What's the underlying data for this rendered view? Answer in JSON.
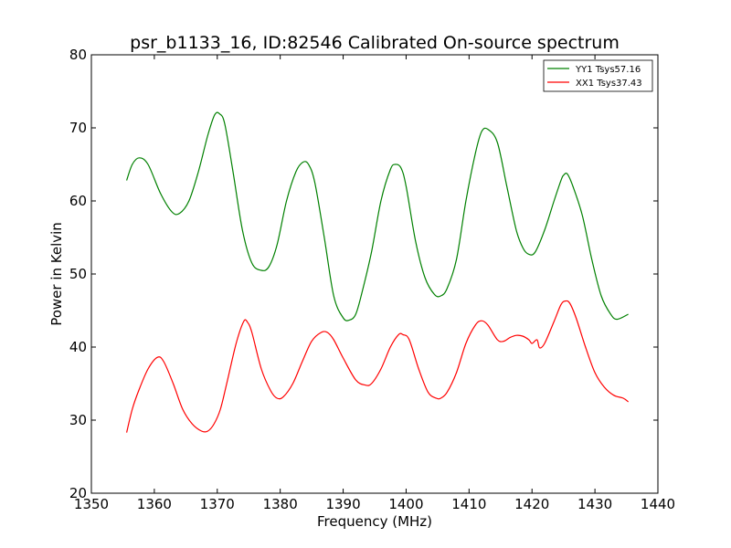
{
  "chart_data": {
    "type": "line",
    "title": "psr_b1133_16, ID:82546 Calibrated On-source spectrum",
    "xlabel": "Frequency (MHz)",
    "ylabel": "Power in Kelvin",
    "xlim": [
      1350,
      1440
    ],
    "ylim": [
      20,
      80
    ],
    "xticks": [
      "1350",
      "1360",
      "1370",
      "1380",
      "1390",
      "1400",
      "1410",
      "1420",
      "1430",
      "1440"
    ],
    "yticks": [
      "20",
      "30",
      "40",
      "50",
      "60",
      "70",
      "80"
    ],
    "grid": false,
    "legend_position": "top-right",
    "series": [
      {
        "name": "YY1 Tsys57.16",
        "color": "#008000",
        "x": [
          1355.6,
          1356.5,
          1357.6,
          1359.0,
          1361.0,
          1362.8,
          1364.0,
          1365.5,
          1367.0,
          1368.5,
          1369.6,
          1370.4,
          1371.2,
          1372.5,
          1374.0,
          1375.5,
          1377.0,
          1378.2,
          1379.5,
          1381.0,
          1382.5,
          1383.6,
          1384.5,
          1385.5,
          1387.0,
          1388.5,
          1390.0,
          1391.0,
          1392.0,
          1393.0,
          1394.5,
          1396.0,
          1397.5,
          1398.3,
          1399.2,
          1400.0,
          1401.5,
          1403.0,
          1404.5,
          1405.5,
          1406.5,
          1408.0,
          1409.5,
          1411.0,
          1412.0,
          1413.0,
          1414.5,
          1416.0,
          1417.5,
          1418.6,
          1419.5,
          1420.5,
          1422.0,
          1423.5,
          1424.6,
          1425.0,
          1425.6,
          1426.5,
          1428.0,
          1429.5,
          1431.0,
          1432.5,
          1433.5,
          1435.3
        ],
        "values": [
          62.8,
          65.0,
          65.9,
          65.0,
          61.0,
          58.5,
          58.3,
          60.0,
          64.0,
          69.0,
          71.8,
          71.9,
          70.5,
          64.0,
          56.0,
          51.5,
          50.5,
          51.0,
          54.0,
          60.0,
          64.0,
          65.3,
          65.0,
          62.5,
          55.0,
          47.0,
          44.0,
          43.7,
          44.5,
          47.5,
          53.0,
          60.0,
          64.3,
          65.0,
          64.5,
          62.0,
          54.5,
          49.5,
          47.2,
          47.0,
          48.0,
          52.0,
          60.0,
          66.5,
          69.5,
          69.8,
          68.0,
          62.0,
          56.0,
          53.5,
          52.7,
          53.0,
          56.0,
          60.0,
          62.8,
          63.5,
          63.7,
          62.0,
          58.0,
          52.0,
          47.0,
          44.5,
          43.8,
          44.5
        ]
      },
      {
        "name": "XX1 Tsys37.43",
        "color": "#ff0000",
        "x": [
          1355.6,
          1356.5,
          1357.5,
          1359.0,
          1360.5,
          1361.5,
          1363.0,
          1364.5,
          1366.0,
          1367.5,
          1368.5,
          1369.5,
          1370.5,
          1371.5,
          1373.0,
          1374.2,
          1374.8,
          1375.5,
          1377.0,
          1378.5,
          1379.5,
          1380.5,
          1382.0,
          1383.5,
          1385.0,
          1386.5,
          1387.5,
          1388.5,
          1390.0,
          1392.0,
          1393.5,
          1394.5,
          1396.0,
          1397.5,
          1398.8,
          1399.5,
          1400.5,
          1402.0,
          1403.5,
          1404.8,
          1405.5,
          1406.5,
          1408.0,
          1409.5,
          1411.0,
          1412.0,
          1413.0,
          1414.5,
          1415.5,
          1416.5,
          1417.5,
          1418.5,
          1419.5,
          1420.0,
          1420.8,
          1421.2,
          1422.0,
          1423.5,
          1424.6,
          1425.3,
          1426.0,
          1427.0,
          1428.5,
          1430.0,
          1431.5,
          1433.0,
          1434.5,
          1435.3
        ],
        "values": [
          28.3,
          31.5,
          34.0,
          37.0,
          38.6,
          38.0,
          35.0,
          31.5,
          29.5,
          28.5,
          28.5,
          29.5,
          31.5,
          35.0,
          40.5,
          43.5,
          43.4,
          42.0,
          37.0,
          34.0,
          33.0,
          33.2,
          35.0,
          38.0,
          40.8,
          42.0,
          42.0,
          41.0,
          38.5,
          35.5,
          34.8,
          35.0,
          37.0,
          40.0,
          41.7,
          41.7,
          41.0,
          37.0,
          33.8,
          33.0,
          33.0,
          33.8,
          36.5,
          40.5,
          43.0,
          43.6,
          43.0,
          41.0,
          40.8,
          41.3,
          41.6,
          41.5,
          41.0,
          40.5,
          41.0,
          39.9,
          40.5,
          43.5,
          45.8,
          46.3,
          46.0,
          44.0,
          40.0,
          36.5,
          34.5,
          33.4,
          33.0,
          32.5
        ]
      }
    ]
  }
}
